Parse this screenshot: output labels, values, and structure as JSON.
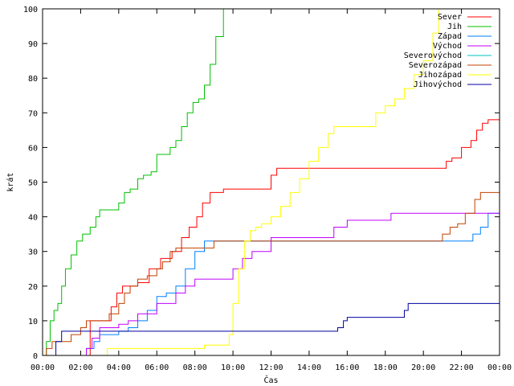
{
  "chart_data": {
    "type": "line",
    "title": "",
    "xlabel": "Čas",
    "ylabel": "krát",
    "xlim": [
      0,
      24
    ],
    "ylim": [
      0,
      100
    ],
    "x_ticks": [
      0,
      2,
      4,
      6,
      8,
      10,
      12,
      14,
      16,
      18,
      20,
      22,
      24
    ],
    "x_tick_labels": [
      "00:00",
      "02:00",
      "04:00",
      "06:00",
      "08:00",
      "10:00",
      "12:00",
      "14:00",
      "16:00",
      "18:00",
      "20:00",
      "22:00",
      "00:00"
    ],
    "y_ticks": [
      0,
      10,
      20,
      30,
      40,
      50,
      60,
      70,
      80,
      90,
      100
    ],
    "y_tick_labels": [
      "0",
      "10",
      "20",
      "30",
      "40",
      "50",
      "60",
      "70",
      "80",
      "90",
      "100"
    ],
    "grid": false,
    "legend_position": "top-right",
    "series": [
      {
        "name": "Sever",
        "color": "#ff0000",
        "x": [
          0.0,
          0.3,
          0.6,
          1.5,
          2.0,
          2.5,
          3.3,
          3.6,
          3.9,
          4.2,
          4.5,
          5.0,
          5.6,
          6.2,
          6.8,
          7.3,
          7.7,
          8.1,
          8.4,
          8.8,
          9.5,
          10.0,
          11.0,
          11.8,
          12.0,
          12.3,
          13.0,
          14.0,
          15.0,
          17.0,
          19.0,
          20.0,
          20.9,
          21.2,
          21.5,
          22.0,
          22.5,
          22.8,
          23.1,
          23.4,
          24.0
        ],
        "y": [
          0,
          0,
          0,
          0,
          0,
          10,
          10,
          14,
          18,
          20,
          20,
          21,
          25,
          28,
          30,
          34,
          37,
          40,
          44,
          47,
          48,
          48,
          48,
          48,
          52,
          54,
          54,
          54,
          54,
          54,
          54,
          54,
          54,
          56,
          57,
          60,
          62,
          65,
          67,
          68,
          68
        ]
      },
      {
        "name": "Jih",
        "color": "#00c000",
        "x": [
          0.0,
          0.2,
          0.4,
          0.6,
          0.8,
          1.0,
          1.2,
          1.5,
          1.8,
          2.1,
          2.5,
          2.8,
          3.0,
          3.5,
          4.0,
          4.3,
          4.6,
          5.0,
          5.3,
          5.7,
          6.0,
          6.3,
          6.7,
          7.0,
          7.3,
          7.6,
          7.9,
          8.2,
          8.5,
          8.8,
          9.1,
          9.5
        ],
        "y": [
          0,
          4,
          10,
          13,
          15,
          20,
          25,
          29,
          33,
          35,
          37,
          40,
          42,
          42,
          44,
          47,
          48,
          51,
          52,
          53,
          58,
          58,
          60,
          62,
          66,
          70,
          73,
          74,
          78,
          84,
          92,
          100
        ]
      },
      {
        "name": "Západ",
        "color": "#0080ff",
        "x": [
          0.0,
          1.5,
          2.0,
          2.3,
          2.7,
          3.0,
          3.5,
          4.0,
          4.5,
          5.0,
          5.5,
          6.0,
          6.5,
          7.0,
          7.5,
          8.0,
          8.5,
          9.0,
          10.0,
          12.0,
          14.0,
          16.0,
          18.0,
          20.0,
          22.0,
          22.6,
          23.0,
          23.4,
          24.0
        ],
        "y": [
          0,
          0,
          0,
          2,
          4,
          6,
          6,
          7,
          8,
          10,
          13,
          17,
          18,
          20,
          25,
          30,
          33,
          33,
          33,
          33,
          33,
          33,
          33,
          33,
          33,
          35,
          37,
          41,
          43
        ]
      },
      {
        "name": "Východ",
        "color": "#c000ff",
        "x": [
          0.0,
          2.0,
          2.3,
          2.6,
          3.0,
          4.0,
          4.5,
          5.0,
          6.0,
          7.0,
          7.5,
          8.0,
          9.0,
          10.0,
          10.5,
          11.0,
          12.0,
          14.0,
          15.0,
          15.3,
          16.0,
          17.0,
          18.0,
          18.3,
          20.0,
          22.0,
          24.0
        ],
        "y": [
          0,
          0,
          2,
          5,
          8,
          9,
          10,
          12,
          15,
          18,
          20,
          22,
          22,
          25,
          28,
          30,
          34,
          34,
          34,
          37,
          39,
          39,
          39,
          41,
          41,
          41,
          41
        ]
      },
      {
        "name": "Severovýchod",
        "color": "#00c0c0",
        "x": [],
        "y": []
      },
      {
        "name": "Severozápad",
        "color": "#c04000",
        "x": [
          0.0,
          0.2,
          0.5,
          1.0,
          1.5,
          2.0,
          2.3,
          2.6,
          3.0,
          3.5,
          4.0,
          4.3,
          4.6,
          5.0,
          5.5,
          6.0,
          6.3,
          6.7,
          7.0,
          8.0,
          9.0,
          10.0,
          12.0,
          14.0,
          16.0,
          18.0,
          20.0,
          21.0,
          21.4,
          21.8,
          22.2,
          22.7,
          23.0,
          24.0
        ],
        "y": [
          0,
          2,
          4,
          4,
          6,
          8,
          10,
          10,
          10,
          12,
          15,
          18,
          20,
          22,
          23,
          25,
          27,
          30,
          31,
          31,
          33,
          33,
          33,
          33,
          33,
          33,
          33,
          35,
          37,
          38,
          41,
          45,
          47,
          47
        ]
      },
      {
        "name": "Jihozápad",
        "color": "#ffff00",
        "x": [
          0.0,
          3.2,
          3.4,
          5.0,
          8.0,
          8.5,
          9.0,
          9.6,
          9.8,
          10.0,
          10.3,
          10.6,
          10.9,
          11.2,
          11.5,
          12.0,
          12.5,
          13.0,
          13.5,
          14.0,
          14.5,
          15.0,
          15.3,
          15.6,
          16.0,
          16.5,
          17.0,
          17.5,
          18.0,
          18.5,
          19.0,
          19.5,
          20.0,
          20.5,
          20.8
        ],
        "y": [
          0,
          0,
          2,
          2,
          2,
          3,
          3,
          3,
          6,
          15,
          25,
          33,
          36,
          37,
          38,
          40,
          43,
          47,
          51,
          56,
          60,
          64,
          66,
          66,
          66,
          66,
          66,
          70,
          72,
          74,
          77,
          81,
          85,
          93,
          100
        ]
      },
      {
        "name": "Jihovýchod",
        "color": "#0000a0",
        "x": [
          0.0,
          0.7,
          1.0,
          2.0,
          3.0,
          4.0,
          5.0,
          6.0,
          7.0,
          8.0,
          10.0,
          12.0,
          14.0,
          15.0,
          15.5,
          15.8,
          16.0,
          17.0,
          18.0,
          19.0,
          19.2,
          20.0,
          22.0,
          24.0
        ],
        "y": [
          0,
          4,
          7,
          7,
          7,
          7,
          7,
          7,
          7,
          7,
          7,
          7,
          7,
          7,
          8,
          10,
          11,
          11,
          11,
          13,
          15,
          15,
          15,
          15
        ]
      }
    ]
  }
}
